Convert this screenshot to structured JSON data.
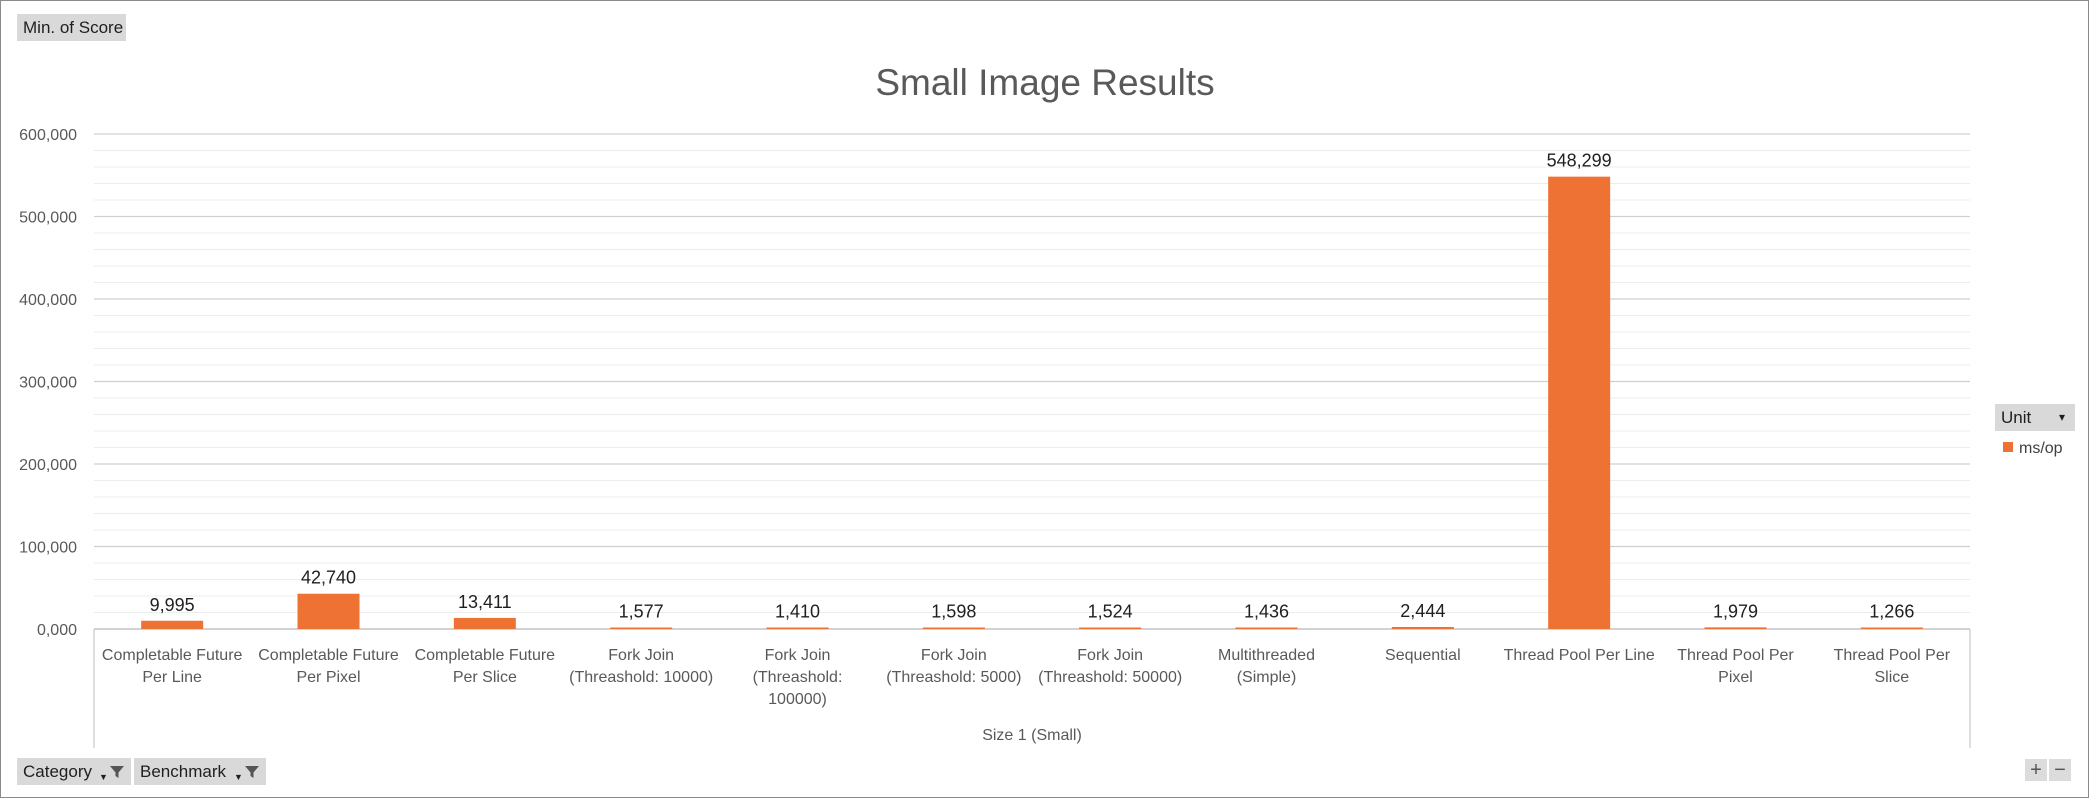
{
  "value_field": "Min. of Score",
  "row_fields": [
    {
      "label": "Category"
    },
    {
      "label": "Benchmark"
    }
  ],
  "legend": {
    "field_label": "Unit",
    "series_label": "ms/op"
  },
  "zoom": {
    "plus": "+",
    "minus": "−"
  },
  "chart_data": {
    "type": "bar",
    "title": "Small Image Results",
    "group_label": "Size 1 (Small)",
    "categories": [
      "Completable Future Per Line",
      "Completable Future Per Pixel",
      "Completable Future Per Slice",
      "Fork Join (Threashold: 10000)",
      "Fork Join (Threashold: 100000)",
      "Fork Join (Threashold: 5000)",
      "Fork Join (Threashold: 50000)",
      "Multithreaded (Simple)",
      "Sequential",
      "Thread Pool Per Line",
      "Thread Pool Per Pixel",
      "Thread Pool Per Slice"
    ],
    "series": [
      {
        "name": "ms/op",
        "color": "#ed7233",
        "values": [
          9995,
          42740,
          13411,
          1577,
          1410,
          1598,
          1524,
          1436,
          2444,
          548299,
          1979,
          1266
        ],
        "data_labels": [
          "9,995",
          "42,740",
          "13,411",
          "1,577",
          "1,410",
          "1,598",
          "1,524",
          "1,436",
          "2,444",
          "548,299",
          "1,979",
          "1,266"
        ]
      }
    ],
    "ylim": [
      0,
      600000
    ],
    "y_ticks": [
      0,
      100000,
      200000,
      300000,
      400000,
      500000,
      600000
    ],
    "y_tick_labels": [
      "0,000",
      "100,000",
      "200,000",
      "300,000",
      "400,000",
      "500,000",
      "600,000"
    ],
    "grid": true,
    "legend_position": "right",
    "colors": {
      "bar": "#ed7233",
      "major_grid": "#d0d0d0",
      "minor_grid": "#ececec"
    }
  }
}
